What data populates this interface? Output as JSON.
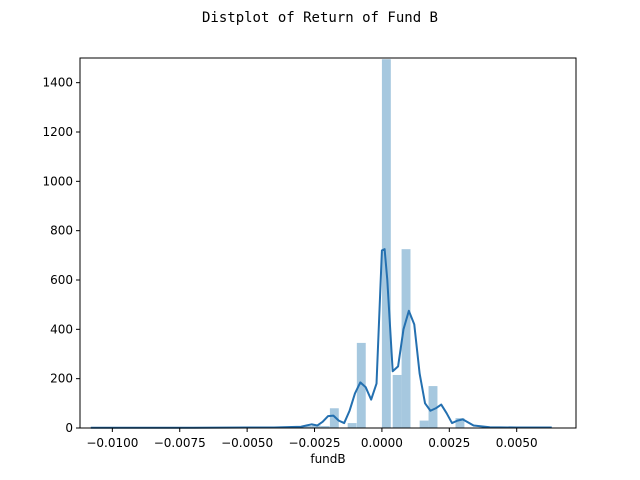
{
  "chart_data": {
    "type": "bar",
    "title": "Distplot of Return of Fund B",
    "xlabel": "fundB",
    "ylabel": "",
    "xlim": [
      -0.0112,
      0.0072
    ],
    "ylim": [
      0,
      1500
    ],
    "x_ticks": [
      -0.01,
      -0.0075,
      -0.005,
      -0.0025,
      0.0,
      0.0025,
      0.005
    ],
    "x_tick_labels": [
      "−0.0100",
      "−0.0075",
      "−0.0050",
      "−0.0025",
      "0.0000",
      "0.0025",
      "0.0050"
    ],
    "y_ticks": [
      0,
      200,
      400,
      600,
      800,
      1000,
      1200,
      1400
    ],
    "y_tick_labels": [
      "0",
      "200",
      "400",
      "600",
      "800",
      "1000",
      "1200",
      "1400"
    ],
    "bin_width": 0.00033,
    "histogram": {
      "bin_starts": [
        -0.0109,
        -0.00527,
        -0.00327,
        -0.00293,
        -0.0026,
        -0.00227,
        -0.00193,
        -0.00127,
        -0.00093,
        0.0,
        0.0004,
        0.00073,
        0.0014,
        0.00173,
        0.00273
      ],
      "counts": [
        2,
        3,
        5,
        8,
        10,
        8,
        80,
        20,
        345,
        1495,
        215,
        725,
        30,
        170,
        40
      ]
    },
    "kde": {
      "x": [
        -0.0108,
        -0.009,
        -0.007,
        -0.005,
        -0.004,
        -0.003,
        -0.0028,
        -0.0026,
        -0.0024,
        -0.0022,
        -0.002,
        -0.0018,
        -0.0016,
        -0.0014,
        -0.0012,
        -0.001,
        -0.0008,
        -0.0006,
        -0.0004,
        -0.0002,
        0.0,
        0.0001,
        0.0002,
        0.0004,
        0.0006,
        0.0008,
        0.001,
        0.0012,
        0.0014,
        0.0016,
        0.0018,
        0.002,
        0.0022,
        0.0024,
        0.0026,
        0.0028,
        0.003,
        0.0034,
        0.004,
        0.005,
        0.0063
      ],
      "y": [
        1,
        1,
        1,
        2,
        2,
        5,
        10,
        15,
        10,
        25,
        48,
        50,
        30,
        20,
        70,
        140,
        185,
        165,
        115,
        180,
        720,
        725,
        600,
        230,
        250,
        400,
        475,
        420,
        220,
        100,
        70,
        80,
        95,
        60,
        20,
        30,
        35,
        10,
        3,
        2,
        2
      ]
    },
    "colors": {
      "bar": "#a6c8df",
      "kde": "#2470b0",
      "axis": "#000000"
    },
    "grid": false,
    "legend": "none"
  }
}
